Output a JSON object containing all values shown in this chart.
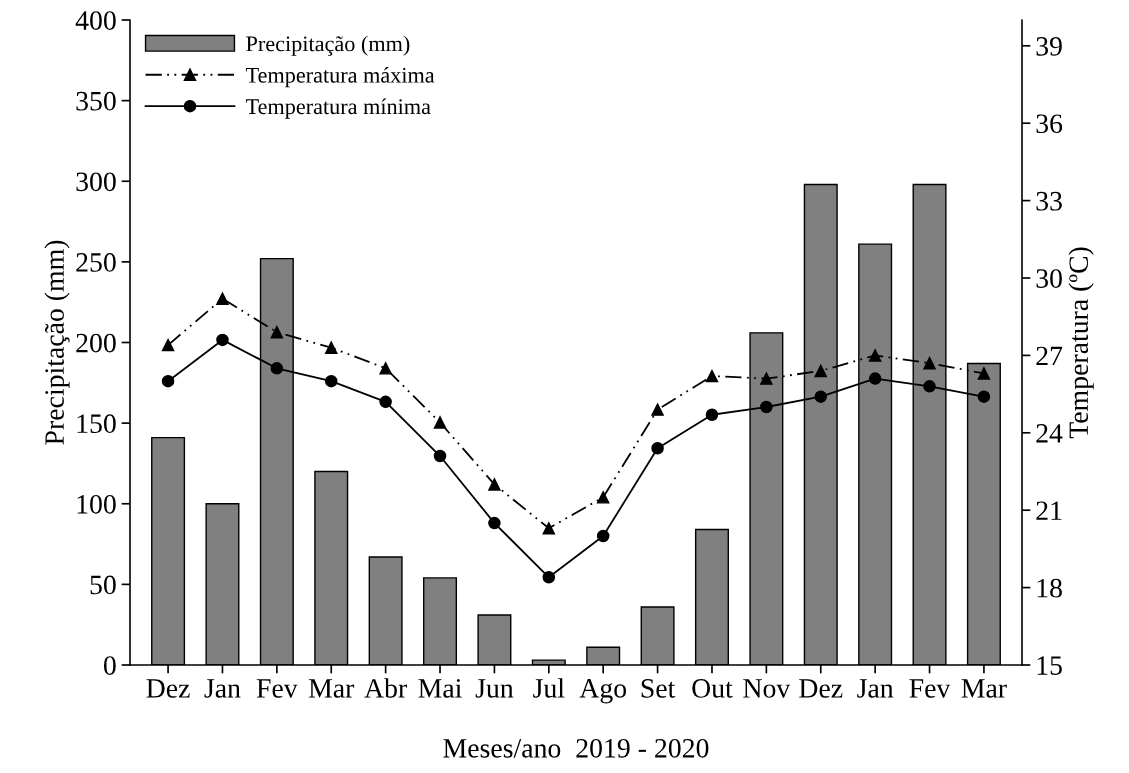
{
  "chart_data": {
    "type": "bar",
    "xlabel": "Meses/ano  2019 - 2020",
    "ylabel": "Precipitação (mm)",
    "y2label": "Temperatura (ºC)",
    "categories": [
      "Dez",
      "Jan",
      "Fev",
      "Mar",
      "Abr",
      "Mai",
      "Jun",
      "Jul",
      "Ago",
      "Set",
      "Out",
      "Nov",
      "Dez",
      "Jan",
      "Fev",
      "Mar"
    ],
    "series": [
      {
        "name": "Precipitação (mm)",
        "color": "#808080",
        "values": [
          141,
          100,
          252,
          120,
          67,
          54,
          31,
          3,
          11,
          36,
          84,
          206,
          298,
          261,
          298,
          187
        ]
      },
      {
        "name": "Temperatura máxima",
        "type": "line",
        "axis": "y2",
        "color": "#000000",
        "marker": "triangle",
        "line_style": "dashed",
        "values": [
          27.4,
          29.2,
          27.9,
          27.3,
          26.5,
          24.4,
          22.0,
          20.3,
          21.5,
          24.9,
          26.2,
          26.1,
          26.4,
          27.0,
          26.7,
          26.3
        ]
      },
      {
        "name": "Temperatura mínima",
        "type": "line",
        "axis": "y2",
        "color": "#000000",
        "marker": "circle",
        "line_style": "solid",
        "values": [
          26.0,
          27.6,
          26.5,
          26.0,
          25.2,
          23.1,
          20.5,
          18.4,
          20.0,
          23.4,
          24.7,
          25.0,
          25.4,
          26.1,
          25.8,
          25.4
        ]
      }
    ],
    "ylim": [
      0,
      400
    ],
    "yticks": [
      0,
      50,
      100,
      150,
      200,
      250,
      300,
      350,
      400
    ],
    "y2lim": [
      15,
      40
    ],
    "y2ticks": [
      15,
      18,
      21,
      24,
      27,
      30,
      33,
      36,
      39
    ],
    "grid": false,
    "legend": "top left"
  }
}
